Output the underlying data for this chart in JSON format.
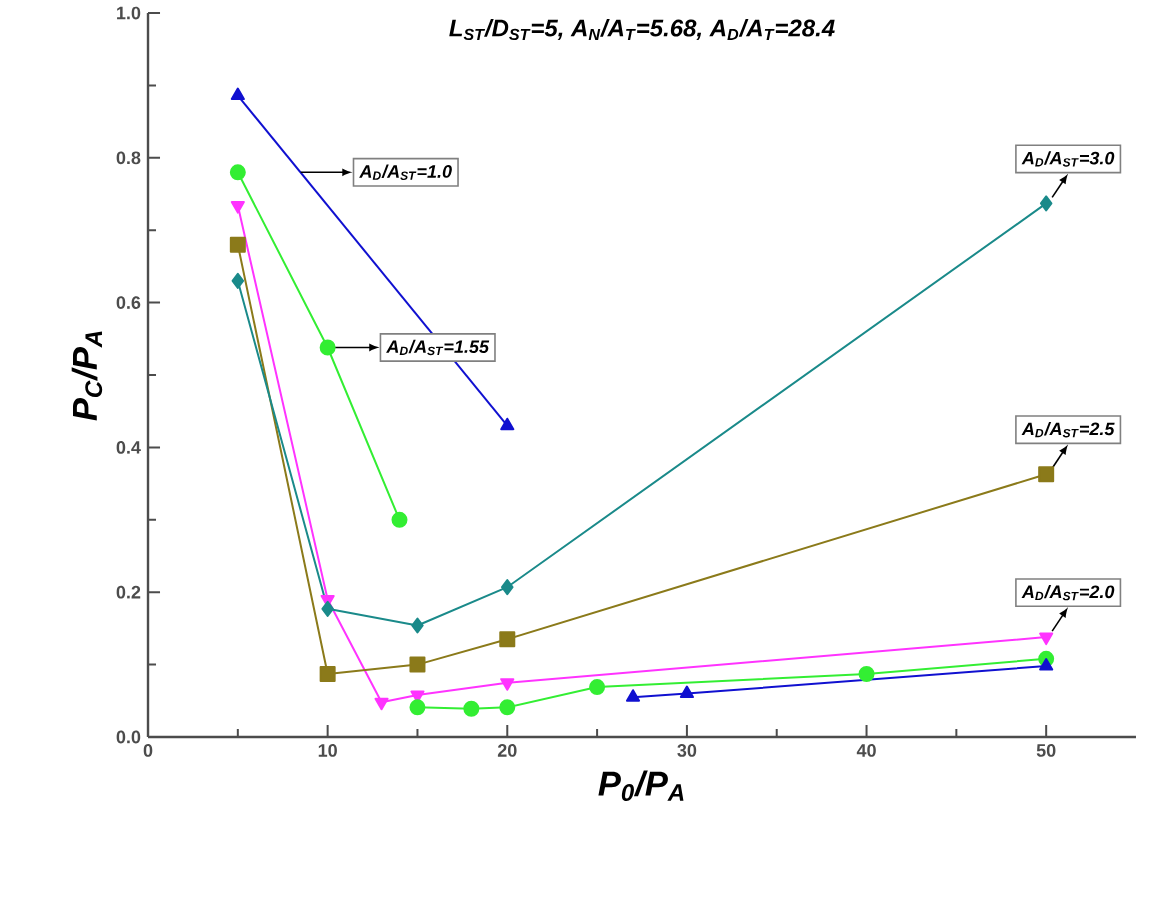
{
  "chart_data": {
    "type": "line",
    "title": "L$_{ST}$/D$_{ST}$=5, A$_{N}$/A$_{T}$=5.68, A$_{D}$/A$_{T}$=28.4",
    "xlabel": "P$_{0}$/P$_{A}$",
    "ylabel": "P$_{C}$/P$_{A}$",
    "xlim": [
      0,
      55
    ],
    "xticks": [
      0,
      10,
      20,
      30,
      40,
      50
    ],
    "ylim": [
      0,
      1
    ],
    "yticks": [
      {
        "value": 0,
        "label": "0.0"
      },
      {
        "value": 0.2,
        "label": "0.2"
      },
      {
        "value": 0.4,
        "label": "0.4"
      },
      {
        "value": 0.6,
        "label": "0.6"
      },
      {
        "value": 0.8,
        "label": "0.8"
      },
      {
        "value": 1,
        "label": "1.0"
      }
    ],
    "series": [
      {
        "color": "#1010d0",
        "marker": "triangle",
        "x": [
          5,
          20
        ],
        "values": [
          0.886,
          0.43
        ]
      },
      {
        "color": "#33ee33",
        "marker": "circle",
        "x": [
          5,
          10,
          14
        ],
        "values": [
          0.78,
          0.538,
          0.3
        ]
      },
      {
        "color": "#ff33ff",
        "marker": "triangle_down",
        "x": [
          5,
          10,
          13,
          15,
          20,
          50
        ],
        "values": [
          0.734,
          0.19,
          0.048,
          0.058,
          0.075,
          0.138
        ]
      },
      {
        "color": "#8b7a1a",
        "marker": "square",
        "x": [
          5,
          10,
          15,
          20,
          50
        ],
        "values": [
          0.68,
          0.087,
          0.1,
          0.135,
          0.363
        ]
      },
      {
        "color": "#1a8a8a",
        "marker": "diamond",
        "x": [
          5,
          10,
          15,
          20,
          50
        ],
        "values": [
          0.63,
          0.177,
          0.154,
          0.207,
          0.737
        ]
      },
      {
        "color": "#33ee33",
        "marker": "circle",
        "x": [
          15,
          18,
          20,
          25,
          40,
          50
        ],
        "values": [
          0.041,
          0.039,
          0.041,
          0.069,
          0.087,
          0.108
        ]
      },
      {
        "color": "#1010d0",
        "marker": "triangle",
        "x": [
          27,
          30,
          50
        ],
        "values": [
          0.055,
          0.06,
          0.098
        ]
      }
    ],
    "annotations": [
      {
        "text": "A$_{D}$/A$_{ST}$=1.0",
        "x": 8.5,
        "y": 0.78
      },
      {
        "text": "A$_{D}$/A$_{ST}$=1.55",
        "x": 10,
        "y": 0.538
      },
      {
        "text": "A$_{D}$/A$_{ST}$=3.0",
        "x": 50,
        "y": 0.737
      },
      {
        "text": "A$_{D}$/A$_{ST}$=2.5",
        "x": 50,
        "y": 0.363
      },
      {
        "text": "A$_{D}$/A$_{ST}$=2.0",
        "x": 50,
        "y": 0.138
      }
    ]
  }
}
